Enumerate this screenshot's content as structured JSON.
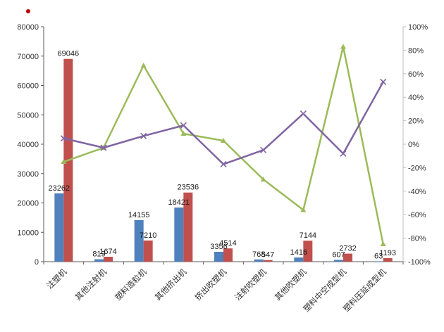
{
  "chart_data": {
    "type": "bar",
    "subtype": "combo-bar-line-dual-axis",
    "title": "",
    "legend": "none",
    "gridlines": false,
    "categories": [
      "注塑机",
      "其他注射机",
      "塑料造粒机",
      "其他挤出机",
      "挤出吹塑机",
      "注射吹塑机",
      "其他吹塑机",
      "塑料中空成型机",
      "塑料压延成型机"
    ],
    "bar_series": [
      {
        "name": "blue-bars",
        "color": "#4f81bd",
        "axis": "left",
        "values": [
          23262,
          819,
          14155,
          18421,
          3356,
          768,
          1416,
          607,
          63
        ],
        "labels": [
          "23262",
          "819",
          "14155",
          "18421",
          "3356",
          "768",
          "1416",
          "607",
          "63"
        ]
      },
      {
        "name": "red-bars",
        "color": "#c0504d",
        "axis": "left",
        "values": [
          69046,
          1674,
          7210,
          23536,
          4514,
          547,
          7144,
          2732,
          1193
        ],
        "labels": [
          "69046",
          "1674",
          "7210",
          "23536",
          "4514",
          "547",
          "7144",
          "2732",
          "1193"
        ]
      }
    ],
    "line_series": [
      {
        "name": "green-line",
        "color": "#9bbb59",
        "axis": "right",
        "marker": "triangle",
        "values_pct": [
          -15,
          -3,
          67,
          9,
          3,
          -30,
          -56,
          83,
          -85
        ]
      },
      {
        "name": "purple-line",
        "color": "#8064a2",
        "axis": "right",
        "marker": "x",
        "values_pct": [
          5,
          -3,
          7,
          16,
          -17,
          -5,
          26,
          -8,
          53
        ]
      }
    ],
    "left_axis": {
      "min": 0,
      "max": 80000,
      "step": 10000,
      "ticks": [
        "0",
        "10000",
        "20000",
        "30000",
        "40000",
        "50000",
        "60000",
        "70000",
        "80000"
      ]
    },
    "right_axis": {
      "min": -100,
      "max": 100,
      "step": 20,
      "ticks": [
        "-100%",
        "-80%",
        "-60%",
        "-40%",
        "-20%",
        "0%",
        "20%",
        "40%",
        "60%",
        "80%",
        "100%"
      ]
    },
    "data_labels": {
      "bars": true,
      "lines": false
    }
  },
  "style": {
    "axis_line_color": "#595959",
    "right_axis_line_color": "#bfbfbf",
    "tick_label_color": "#333333",
    "data_label_color": "#1a1a1a",
    "stray_dot_color": "#c00000"
  }
}
